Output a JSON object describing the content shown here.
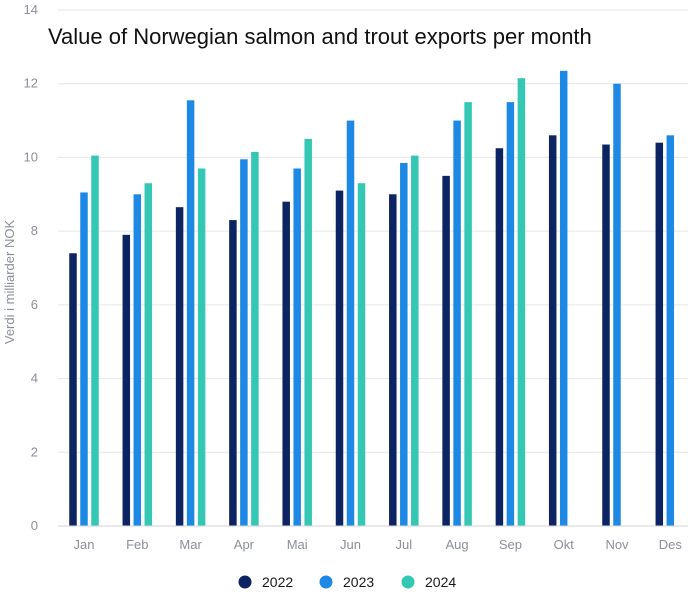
{
  "chart_data": {
    "type": "bar",
    "title": "Value of Norwegian salmon and trout exports per month",
    "xlabel": "",
    "ylabel": "Verdi i milliarder NOK",
    "ylim": [
      0,
      14
    ],
    "yticks": [
      0,
      2,
      4,
      6,
      8,
      10,
      12,
      14
    ],
    "grid": true,
    "legend_position": "bottom",
    "categories": [
      "Jan",
      "Feb",
      "Mar",
      "Apr",
      "Mai",
      "Jun",
      "Jul",
      "Aug",
      "Sep",
      "Okt",
      "Nov",
      "Des"
    ],
    "series": [
      {
        "name": "2022",
        "color": "#0c2461",
        "values": [
          7.4,
          7.9,
          8.65,
          8.3,
          8.8,
          9.1,
          9.0,
          9.5,
          10.25,
          10.6,
          10.35,
          10.4
        ]
      },
      {
        "name": "2023",
        "color": "#1e88e5",
        "values": [
          9.05,
          9.0,
          11.55,
          9.95,
          9.7,
          11.0,
          9.85,
          11.0,
          11.5,
          12.35,
          12.0,
          10.6
        ]
      },
      {
        "name": "2024",
        "color": "#33c7b4",
        "values": [
          10.05,
          9.3,
          9.7,
          10.15,
          10.5,
          9.3,
          10.05,
          11.5,
          12.15,
          null,
          null,
          null
        ]
      }
    ]
  }
}
